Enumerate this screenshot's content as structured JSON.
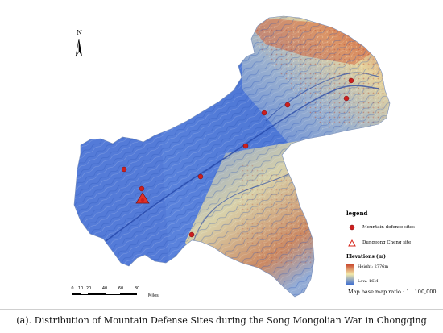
{
  "north_arrow": {
    "label": "N"
  },
  "legend": {
    "title": "legend",
    "items": [
      {
        "symbol": "red-dot-icon",
        "label": "Mountain defense sites"
      },
      {
        "symbol": "red-triangle-icon",
        "label": "Dungeong Cheng site"
      }
    ]
  },
  "elevation": {
    "title": "Elevations (m)",
    "high_label": "Height: 2776m",
    "low_label": "Low: 16M",
    "high_color": "#c63b24",
    "mid_color": "#f3e9a9",
    "low_color": "#3f6fd1"
  },
  "map_ratio": "Map base map ratio : 1 : 100,000",
  "scale_bar": {
    "ticks": [
      "0",
      "10",
      "20",
      "40",
      "60",
      "80"
    ],
    "unit": "Miles"
  },
  "colors": {
    "site_marker": "#cc1f1f",
    "lowland": "#4470d6",
    "highland": "#d9693c"
  },
  "caption": "(a). Distribution of Mountain Defense Sites during the Song Mongolian War in Chongqing"
}
